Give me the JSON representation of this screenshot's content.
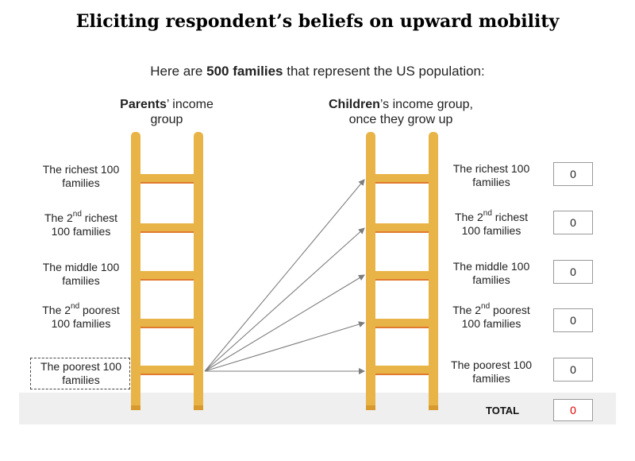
{
  "title": "Eliciting respondent’s beliefs on upward mobility",
  "intro": {
    "before": "Here are ",
    "bold": "500 families",
    "after": " that represent the US population:"
  },
  "parents_header": {
    "bold": "Parents",
    "rest": "’ income",
    "line2": "group"
  },
  "children_header": {
    "bold": "Children",
    "rest": "’s income group,",
    "line2": "once they grow up"
  },
  "groups": [
    {
      "a": "The richest 100",
      "b": "families"
    },
    {
      "pre": "The 2",
      "sup": "nd",
      "post": " richest",
      "b": "100 families"
    },
    {
      "a": "The middle 100",
      "b": "families"
    },
    {
      "pre": "The 2",
      "sup": "nd",
      "post": " poorest",
      "b": "100 families"
    },
    {
      "a": "The poorest 100",
      "b": "families"
    }
  ],
  "counts": [
    "0",
    "0",
    "0",
    "0",
    "0"
  ],
  "total_label": "TOTAL",
  "total_value": "0",
  "colors": {
    "ladder": "#e8b447",
    "ladder_shade": "#d89a2e",
    "rung_edge": "#e07a2f",
    "arrow": "#7d7d7d",
    "total_value": "#e00000"
  }
}
